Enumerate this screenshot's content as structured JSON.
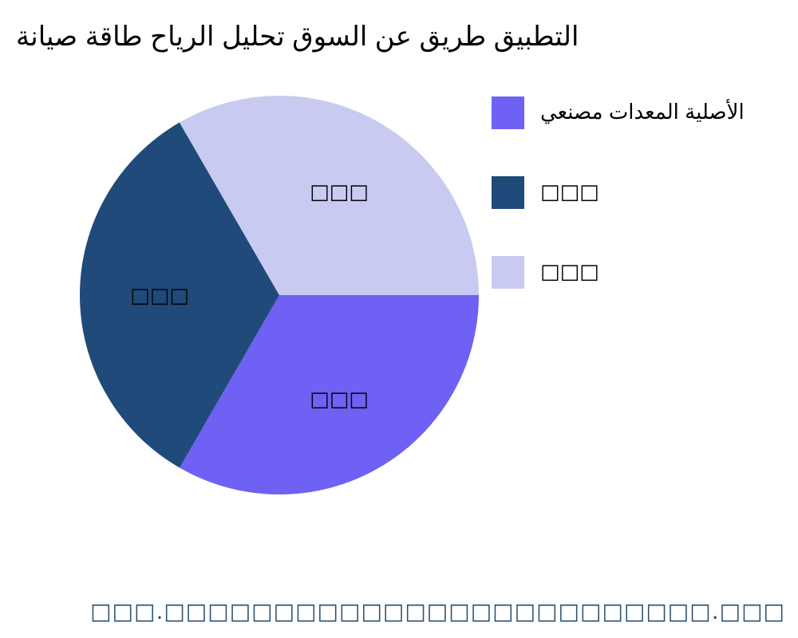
{
  "chart_data": {
    "type": "pie",
    "title": "صيانة طاقة الرياح تحليل السوق عن طريق التطبيق",
    "slices": [
      {
        "label": "□□□",
        "legend": "مصنعي المعدات الأصلية",
        "value": 33.33,
        "color": "#6f61f3"
      },
      {
        "label": "□□□",
        "legend": "□□□",
        "value": 33.33,
        "color": "#1f4a7a"
      },
      {
        "label": "□□□",
        "legend": "□□□",
        "value": 33.34,
        "color": "#c9caf2"
      }
    ],
    "legend_position": "right",
    "start_angle_deg": 0,
    "direction": "clockwise"
  },
  "watermark": "□□□.□□□□□□□□□□□□□□□□□□□□□□□□□.□□□"
}
